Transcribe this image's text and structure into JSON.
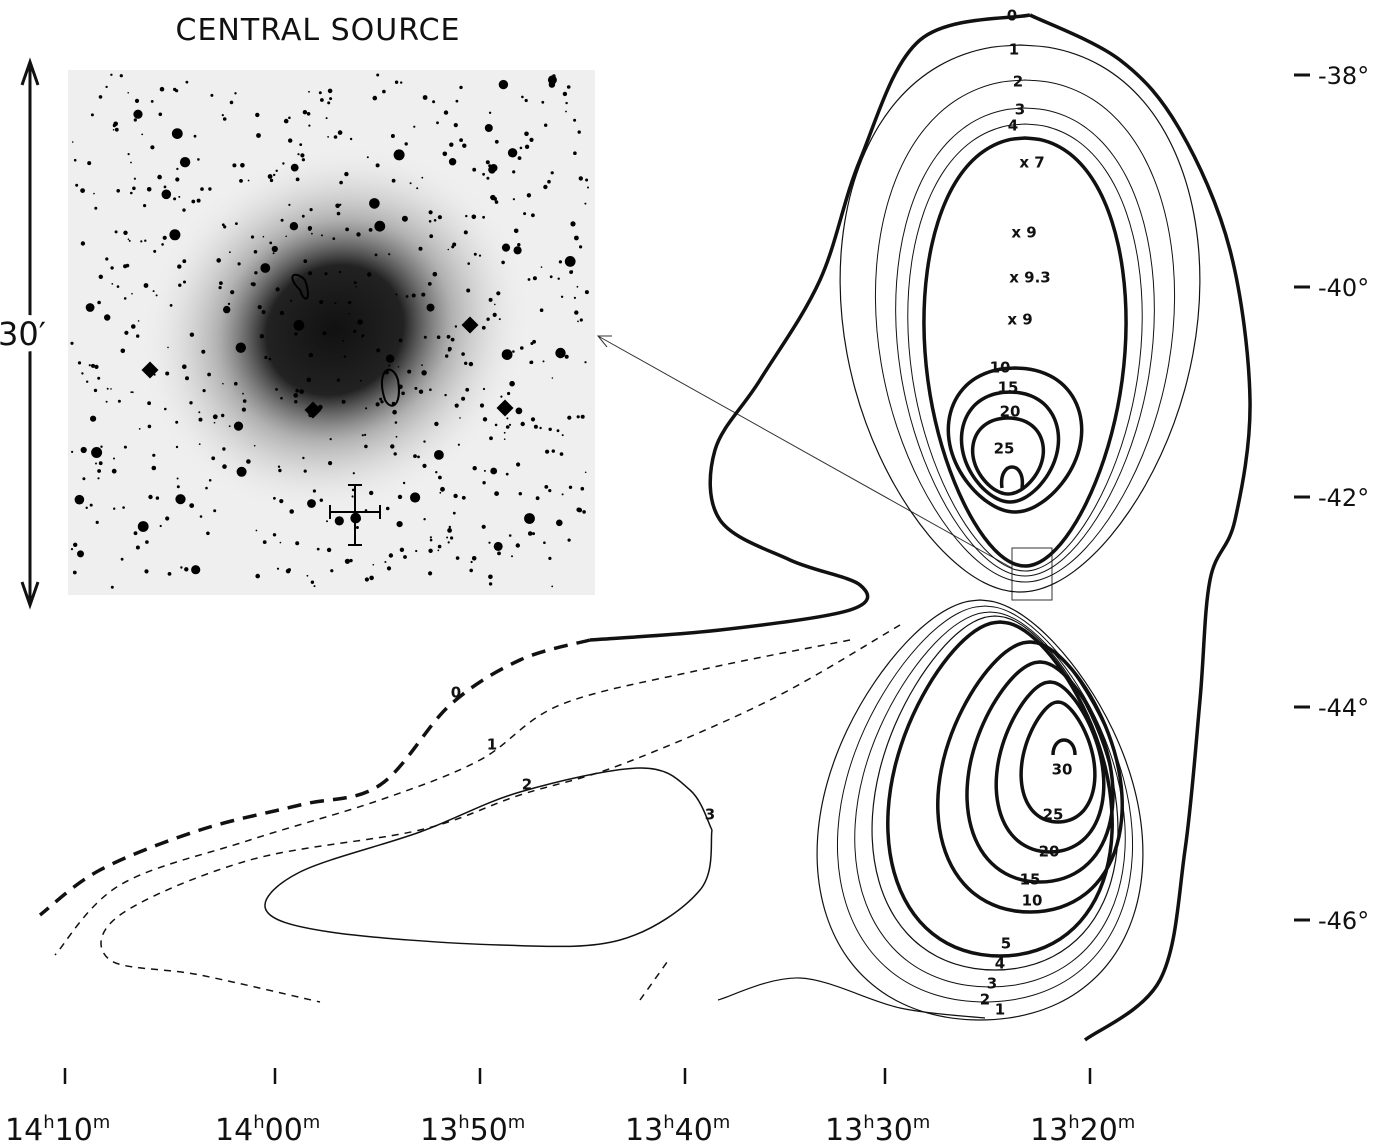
{
  "inset": {
    "title": "CENTRAL SOURCE",
    "scale": "30′"
  },
  "north_lobe_labels": [
    "0",
    "1",
    "2",
    "3",
    "4",
    "x 7",
    "x 9",
    "x 9.3",
    "x 9",
    "10",
    "15",
    "20",
    "25"
  ],
  "south_lobe_labels": [
    "0",
    "1",
    "2",
    "3",
    "30",
    "25",
    "20",
    "15",
    "10",
    "5",
    "4",
    "3",
    "2",
    "1"
  ],
  "declination_labels": [
    "-38°",
    "-40°",
    "-42°",
    "-44°",
    "-46°"
  ],
  "right_ascension_labels": [
    {
      "hours": "14",
      "hour_unit": "h",
      "minutes": "10",
      "minute_unit": "m"
    },
    {
      "hours": "14",
      "hour_unit": "h",
      "minutes": "00",
      "minute_unit": "m"
    },
    {
      "hours": "13",
      "hour_unit": "h",
      "minutes": "50",
      "minute_unit": "m"
    },
    {
      "hours": "13",
      "hour_unit": "h",
      "minutes": "40",
      "minute_unit": "m"
    },
    {
      "hours": "13",
      "hour_unit": "h",
      "minutes": "30",
      "minute_unit": "m"
    },
    {
      "hours": "13",
      "hour_unit": "h",
      "minutes": "20",
      "minute_unit": "m"
    }
  ]
}
